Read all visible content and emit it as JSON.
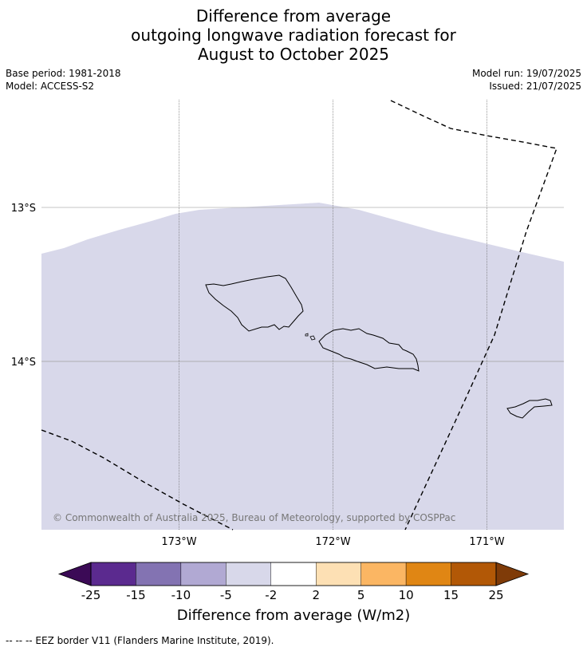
{
  "title_lines": [
    "Difference from average",
    "outgoing longwave radiation forecast for",
    "August to October 2025"
  ],
  "meta_left": [
    "Base period: 1981-2018",
    "Model: ACCESS-S2"
  ],
  "meta_right": [
    "Model run: 19/07/2025",
    "Issued: 21/07/2025"
  ],
  "map": {
    "lat_labels": [
      "13°S",
      "14°S"
    ],
    "lon_labels": [
      "173°W",
      "172°W",
      "171°W"
    ],
    "copyright": "© Commonwealth of Australia 2025, Bureau of Meteorology, supported by COSPPac",
    "field_color": "#d8d8ea",
    "field_category": "-5 to -2"
  },
  "colorbar": {
    "ticks": [
      "-25",
      "-15",
      "-10",
      "-5",
      "-2",
      "2",
      "5",
      "10",
      "15",
      "25"
    ],
    "colors": [
      "#5b2a8f",
      "#8373b2",
      "#b1a9d3",
      "#d8d8ea",
      "#ffffff",
      "#fde0b4",
      "#fbb663",
      "#e08614",
      "#b25806"
    ],
    "under_color": "#3b0a56",
    "over_color": "#7f3b08",
    "label": "Difference from average (W/m2)"
  },
  "footnote": "--  --  -- EEZ border V11 (Flanders Marine Institute, 2019)."
}
